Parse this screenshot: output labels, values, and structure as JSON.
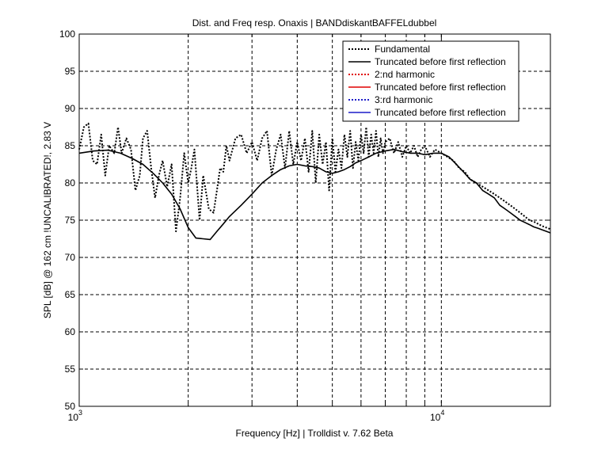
{
  "chart_data": {
    "type": "line",
    "title": "Dist. and Freq resp. Onaxis | BANDdiskantBAFFELdubbel",
    "xlabel": "Frequency [Hz] | Trolldist v. 7.62 Beta",
    "ylabel": "SPL [dB] @ 162 cm !UNCALIBRATED!, 2.83 V",
    "xscale": "log",
    "xlim": [
      1000,
      20000
    ],
    "ylim": [
      50,
      100
    ],
    "grid": true,
    "legend_position": "top-right",
    "yticks": [
      50,
      55,
      60,
      65,
      70,
      75,
      80,
      85,
      90,
      95,
      100
    ],
    "ytick_labels": [
      "50",
      "55",
      "60",
      "65",
      "70",
      "75",
      "80",
      "85",
      "90",
      "95",
      "100"
    ],
    "xtick_major": [
      {
        "value": 1000,
        "base": "10",
        "exp": "3"
      },
      {
        "value": 10000,
        "base": "10",
        "exp": "4"
      }
    ],
    "xtick_minor": [
      2000,
      3000,
      4000,
      5000,
      6000,
      7000,
      8000,
      9000,
      20000
    ],
    "series": [
      {
        "name": "Fundamental",
        "color": "#000000",
        "style": "dotted",
        "x": [
          1000,
          1030,
          1060,
          1090,
          1120,
          1150,
          1180,
          1210,
          1250,
          1280,
          1310,
          1350,
          1390,
          1430,
          1470,
          1500,
          1540,
          1580,
          1620,
          1660,
          1700,
          1750,
          1800,
          1850,
          1900,
          1950,
          2000,
          2040,
          2080,
          2150,
          2200,
          2280,
          2350,
          2400,
          2450,
          2500,
          2550,
          2600,
          2700,
          2800,
          2900,
          3000,
          3100,
          3200,
          3300,
          3400,
          3500,
          3600,
          3700,
          3800,
          3900,
          4000,
          4100,
          4200,
          4300,
          4400,
          4500,
          4600,
          4700,
          4800,
          4900,
          5000,
          5100,
          5200,
          5300,
          5400,
          5500,
          5600,
          5700,
          5800,
          5900,
          6000,
          6100,
          6200,
          6300,
          6400,
          6500,
          6600,
          6700,
          6800,
          6900,
          7000,
          7200,
          7400,
          7600,
          7800,
          8000,
          8200,
          8400,
          8600,
          8800,
          9000,
          9300,
          9600,
          10000,
          10400,
          10800,
          11200,
          11600,
          12000,
          12500,
          13000,
          13500,
          14000,
          14500,
          15000,
          15500,
          16000,
          16500,
          17000,
          17500,
          18000,
          18500,
          19000,
          19500,
          20000
        ],
        "y": [
          84.5,
          87.5,
          88.0,
          83.0,
          82.5,
          86.5,
          81.0,
          85.0,
          84.0,
          87.5,
          84.0,
          86.0,
          84.5,
          79.0,
          81.0,
          86.0,
          87.0,
          82.0,
          78.0,
          81.0,
          83.0,
          79.5,
          82.5,
          73.5,
          78.0,
          84.0,
          80.0,
          82.0,
          84.5,
          75.0,
          81.0,
          76.5,
          76.0,
          79.0,
          82.0,
          81.5,
          85.0,
          83.0,
          86.0,
          86.5,
          84.0,
          85.5,
          83.0,
          86.0,
          87.0,
          81.0,
          84.5,
          86.5,
          82.0,
          87.0,
          82.5,
          85.5,
          83.0,
          86.0,
          81.5,
          87.0,
          80.0,
          86.5,
          82.5,
          85.5,
          79.0,
          86.0,
          81.5,
          84.5,
          82.0,
          86.5,
          83.5,
          87.0,
          82.0,
          85.5,
          83.0,
          86.5,
          84.0,
          87.5,
          83.5,
          86.5,
          84.0,
          87.0,
          83.5,
          86.0,
          84.0,
          85.5,
          86.0,
          84.0,
          85.5,
          83.5,
          85.0,
          84.0,
          85.0,
          83.5,
          84.5,
          85.0,
          83.5,
          84.5,
          84.0,
          83.5,
          83.0,
          82.0,
          81.5,
          80.5,
          80.0,
          79.5,
          79.0,
          78.5,
          78.0,
          77.5,
          77.0,
          76.5,
          76.0,
          75.5,
          75.0,
          74.8,
          74.5,
          74.2,
          74.0,
          73.8
        ]
      },
      {
        "name": "Truncated before first reflection",
        "color": "#000000",
        "style": "solid",
        "x": [
          1000,
          1100,
          1200,
          1300,
          1400,
          1500,
          1600,
          1700,
          1800,
          1900,
          2000,
          2100,
          2200,
          2300,
          2400,
          2500,
          2600,
          2800,
          3000,
          3200,
          3400,
          3600,
          3800,
          4000,
          4200,
          4400,
          4600,
          4800,
          5000,
          5200,
          5400,
          5600,
          5800,
          6000,
          6300,
          6600,
          7000,
          7400,
          7800,
          8200,
          8600,
          9000,
          9500,
          10000,
          10500,
          11000,
          11500,
          12000,
          12500,
          13000,
          13500,
          14000,
          14500,
          15000,
          15500,
          16000,
          16500,
          17000,
          17500,
          18000,
          18500,
          19000,
          19500,
          20000
        ],
        "y": [
          84.0,
          84.3,
          84.4,
          84.0,
          83.3,
          82.5,
          81.3,
          80.0,
          78.5,
          76.5,
          74.0,
          72.6,
          72.5,
          72.4,
          73.5,
          74.5,
          75.5,
          77.0,
          78.5,
          80.0,
          81.0,
          81.8,
          82.3,
          82.5,
          82.3,
          82.2,
          82.0,
          81.5,
          81.3,
          81.5,
          81.8,
          82.2,
          82.7,
          83.0,
          83.5,
          84.0,
          84.3,
          84.5,
          84.2,
          84.0,
          84.0,
          83.8,
          84.0,
          84.0,
          83.5,
          82.5,
          81.5,
          80.5,
          80.0,
          79.0,
          78.5,
          78.0,
          77.0,
          76.5,
          76.0,
          75.5,
          75.0,
          74.7,
          74.4,
          74.1,
          73.9,
          73.7,
          73.5,
          73.3
        ]
      },
      {
        "name": "2:nd harmonic",
        "color": "#e00000",
        "style": "dotted",
        "x": [],
        "y": []
      },
      {
        "name": "Truncated before first reflection",
        "color": "#e00000",
        "style": "solid",
        "x": [],
        "y": []
      },
      {
        "name": "3:rd harmonic",
        "color": "#1c1cc8",
        "style": "dotted",
        "x": [],
        "y": []
      },
      {
        "name": "Truncated before first reflection",
        "color": "#1c1cc8",
        "style": "solid",
        "x": [],
        "y": []
      }
    ]
  }
}
